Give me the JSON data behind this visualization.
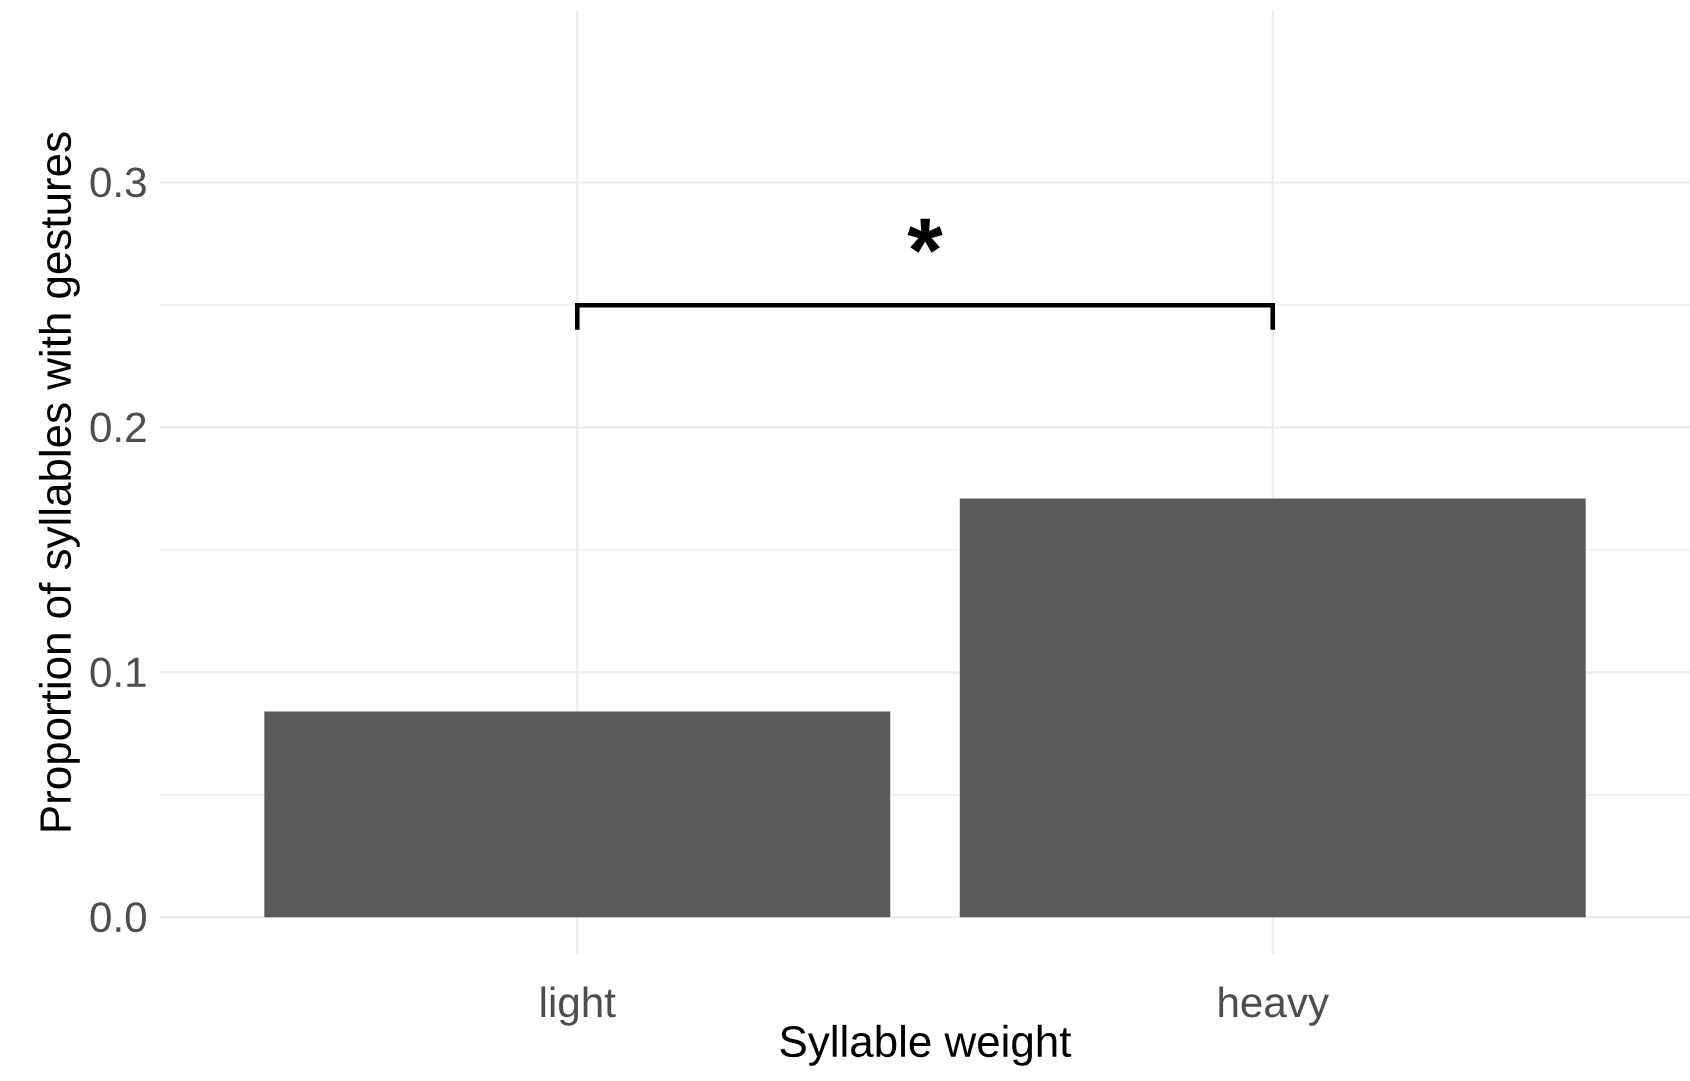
{
  "chart_data": {
    "type": "bar",
    "xlabel": "Syllable weight",
    "ylabel": "Proportion of syllables with gestures",
    "categories": [
      "light",
      "heavy"
    ],
    "values": [
      0.084,
      0.171
    ],
    "color": "#595959",
    "ylim": [
      -0.015,
      0.37
    ],
    "yticks": [
      {
        "value": 0,
        "label": "0.0"
      },
      0.1,
      0.2,
      0.3
    ],
    "grid": true,
    "annotations": [
      "*"
    ]
  }
}
